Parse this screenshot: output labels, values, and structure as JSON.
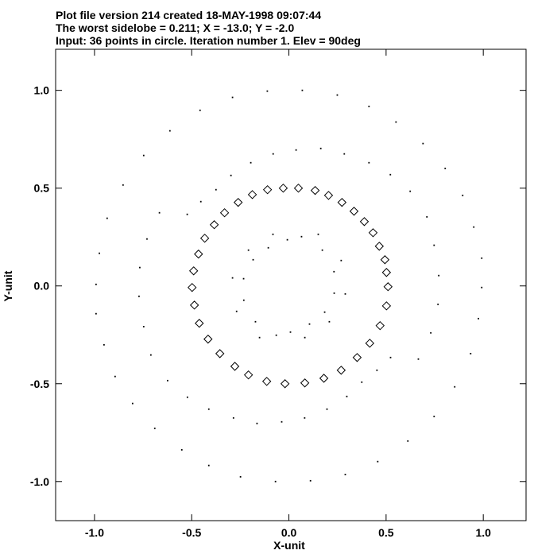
{
  "chart_data": {
    "type": "scatter",
    "title_lines": [
      "Plot file version 214  created 18-MAY-1998 09:07:44",
      "The worst sidelobe = 0.211; X = -13.0; Y =  -2.0",
      "Input: 36 points in circle.  Iteration number   1. Elev = 90deg"
    ],
    "x_label": "X-unit",
    "y_label": "Y-unit",
    "xlim": [
      -1.2,
      1.22
    ],
    "ylim": [
      -1.2,
      1.21
    ],
    "xticks": [
      {
        "value": -1,
        "label": "-1.0"
      },
      {
        "value": -0.5,
        "label": "-0.5"
      },
      {
        "value": 0,
        "label": "0.0"
      },
      {
        "value": 0.5,
        "label": "0.5"
      },
      {
        "value": 1,
        "label": "1.0"
      }
    ],
    "yticks": [
      {
        "value": -1,
        "label": "-1.0"
      },
      {
        "value": -0.5,
        "label": "-0.5"
      },
      {
        "value": 0,
        "label": "0.0"
      },
      {
        "value": 0.5,
        "label": "0.5"
      },
      {
        "value": 1,
        "label": "1.0"
      }
    ],
    "series": [
      {
        "marker": "diamond",
        "color": "#000000",
        "x": [
          -0.029,
          0.049,
          0.135,
          0.204,
          0.273,
          0.335,
          0.388,
          0.433,
          0.465,
          0.494,
          0.502,
          0.51,
          0.502,
          0.469,
          0.416,
          0.351,
          0.269,
          0.18,
          0.082,
          -0.02,
          -0.114,
          -0.208,
          -0.278,
          -0.355,
          -0.416,
          -0.461,
          -0.486,
          -0.498,
          -0.49,
          -0.465,
          -0.433,
          -0.384,
          -0.331,
          -0.261,
          -0.188,
          -0.11
        ],
        "y": [
          0.5,
          0.5,
          0.488,
          0.463,
          0.427,
          0.382,
          0.329,
          0.272,
          0.203,
          0.134,
          0.069,
          -0.004,
          -0.102,
          -0.203,
          -0.293,
          -0.366,
          -0.431,
          -0.472,
          -0.496,
          -0.5,
          -0.488,
          -0.455,
          -0.411,
          -0.346,
          -0.272,
          -0.191,
          -0.098,
          -0.008,
          0.077,
          0.163,
          0.244,
          0.313,
          0.374,
          0.427,
          0.467,
          0.492
        ]
      },
      {
        "marker": "dot",
        "color": "#000000",
        "x": [
          -0.111,
          0.069,
          0.249,
          0.412,
          0.551,
          0.69,
          0.804,
          0.894,
          0.951,
          0.992,
          0.992,
          0.975,
          0.935,
          0.853,
          0.747,
          0.612,
          0.457,
          0.29,
          0.111,
          -0.069,
          -0.249,
          -0.412,
          -0.551,
          -0.69,
          -0.804,
          -0.894,
          -0.951,
          -0.992,
          -0.992,
          -0.975,
          -0.935,
          -0.853,
          -0.747,
          -0.612,
          -0.457,
          -0.29,
          -0.523,
          -0.453,
          -0.375,
          -0.298,
          -0.196,
          -0.081,
          0.037,
          0.164,
          0.285,
          0.412,
          0.522,
          0.624,
          0.71,
          0.747,
          0.771,
          0.767,
          0.73,
          0.666,
          0.523,
          0.453,
          0.375,
          0.298,
          0.196,
          0.081,
          -0.037,
          -0.164,
          -0.285,
          -0.412,
          -0.522,
          -0.624,
          -0.71,
          -0.747,
          -0.771,
          -0.767,
          -0.73,
          -0.666,
          -0.233,
          -0.184,
          -0.106,
          -0.008,
          0.151,
          0.269,
          0.29,
          0.208,
          0.082,
          -0.065,
          -0.172,
          -0.232,
          0.233,
          0.184,
          0.106,
          0.008,
          -0.151,
          -0.269,
          -0.29,
          -0.208,
          -0.082,
          0.065,
          0.172,
          0.232
        ],
        "y": [
          0.996,
          1.0,
          0.976,
          0.918,
          0.838,
          0.728,
          0.601,
          0.463,
          0.301,
          0.142,
          -0.008,
          -0.167,
          -0.346,
          -0.516,
          -0.667,
          -0.793,
          -0.898,
          -0.964,
          -0.996,
          -1.0,
          -0.976,
          -0.918,
          -0.838,
          -0.728,
          -0.601,
          -0.463,
          -0.301,
          -0.142,
          0.008,
          0.167,
          0.346,
          0.516,
          0.667,
          0.793,
          0.898,
          0.964,
          0.366,
          0.431,
          0.492,
          0.565,
          0.63,
          0.675,
          0.695,
          0.703,
          0.675,
          0.63,
          0.569,
          0.484,
          0.353,
          0.208,
          0.053,
          -0.094,
          -0.24,
          -0.374,
          -0.366,
          -0.431,
          -0.492,
          -0.565,
          -0.63,
          -0.675,
          -0.695,
          -0.703,
          -0.675,
          -0.63,
          -0.569,
          -0.484,
          -0.353,
          -0.208,
          -0.053,
          0.094,
          0.24,
          0.374,
          0.037,
          0.134,
          0.195,
          0.236,
          0.264,
          0.13,
          -0.041,
          -0.183,
          -0.264,
          -0.252,
          -0.183,
          -0.073,
          -0.037,
          -0.134,
          -0.195,
          -0.236,
          -0.264,
          -0.13,
          0.041,
          0.183,
          0.264,
          0.252,
          0.183,
          0.073
        ]
      }
    ]
  }
}
